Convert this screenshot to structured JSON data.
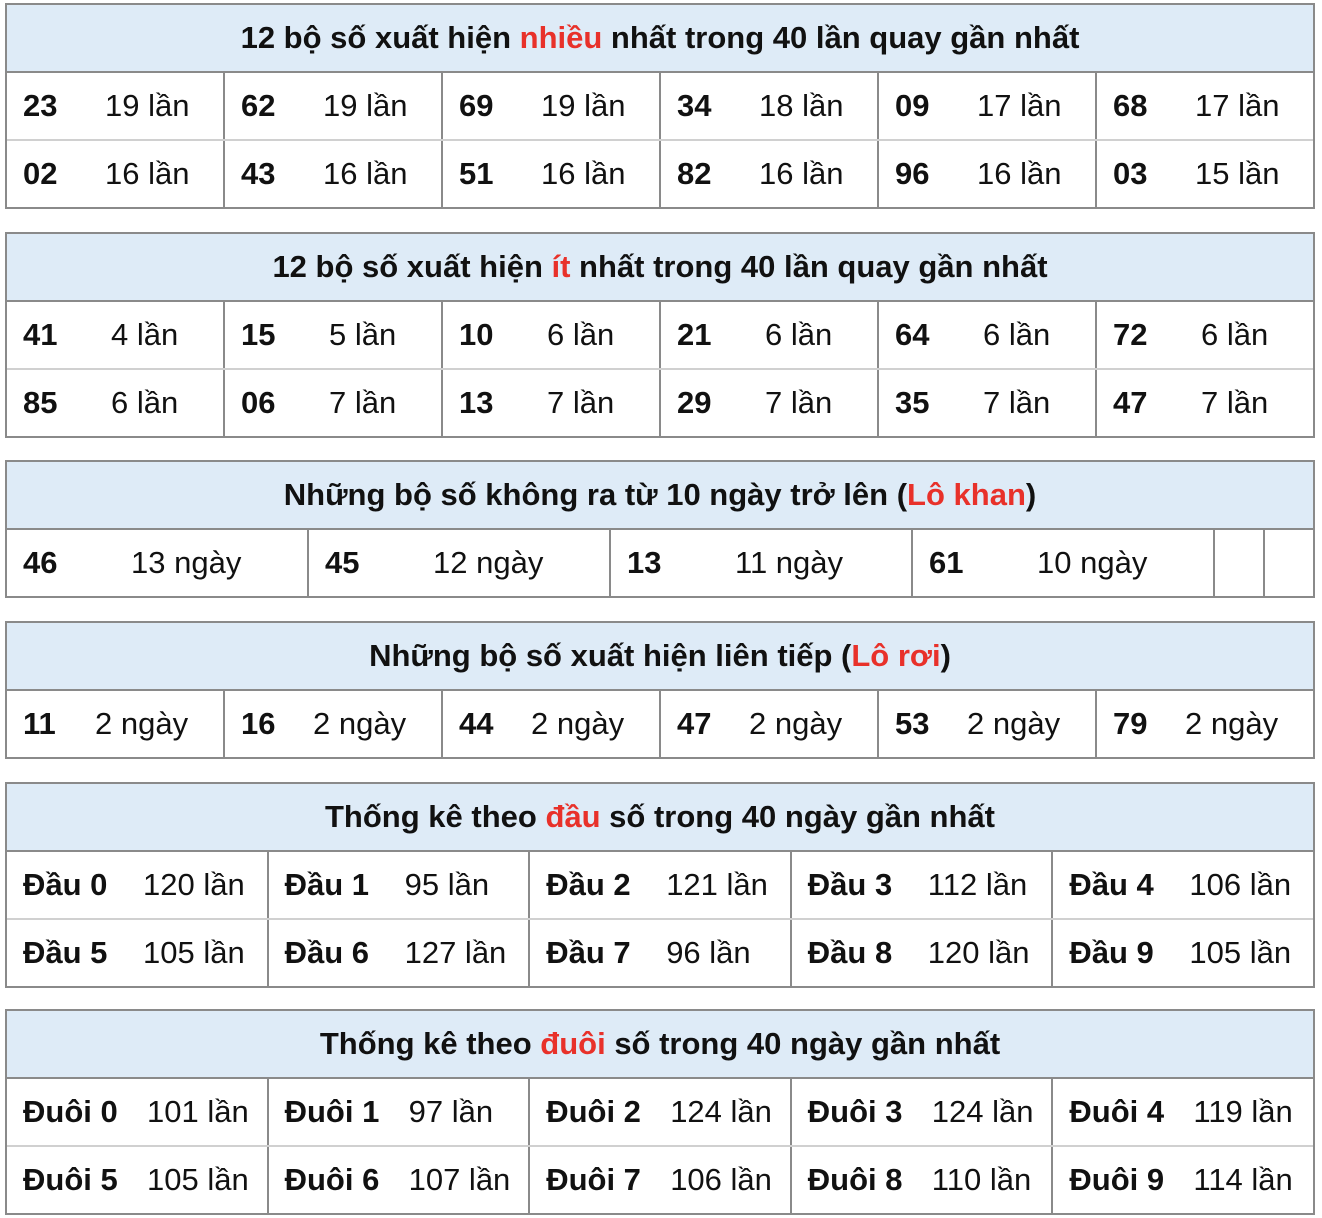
{
  "tables": [
    {
      "title": [
        "12 bộ số xuất hiện ",
        "nhiều",
        " nhất trong 40 lần quay gần nhất"
      ],
      "numw": 82,
      "rows": [
        [
          [
            "23",
            "19 lần"
          ],
          [
            "62",
            "19 lần"
          ],
          [
            "69",
            "19 lần"
          ],
          [
            "34",
            "18 lần"
          ],
          [
            "09",
            "17 lần"
          ],
          [
            "68",
            "17 lần"
          ]
        ],
        [
          [
            "02",
            "16 lần"
          ],
          [
            "43",
            "16 lần"
          ],
          [
            "51",
            "16 lần"
          ],
          [
            "82",
            "16 lần"
          ],
          [
            "96",
            "16 lần"
          ],
          [
            "03",
            "15 lần"
          ]
        ]
      ]
    },
    {
      "title": [
        "12 bộ số xuất hiện ",
        "ít",
        " nhất trong 40 lần quay gần nhất"
      ],
      "numw": 88,
      "rows": [
        [
          [
            "41",
            "4 lần"
          ],
          [
            "15",
            "5 lần"
          ],
          [
            "10",
            "6 lần"
          ],
          [
            "21",
            "6 lần"
          ],
          [
            "64",
            "6 lần"
          ],
          [
            "72",
            "6 lần"
          ]
        ],
        [
          [
            "85",
            "6 lần"
          ],
          [
            "06",
            "7 lần"
          ],
          [
            "13",
            "7 lần"
          ],
          [
            "29",
            "7 lần"
          ],
          [
            "35",
            "7 lần"
          ],
          [
            "47",
            "7 lần"
          ]
        ]
      ]
    },
    {
      "title": [
        "Những bộ số không ra từ 10 ngày trở lên (",
        "Lô khan",
        ")"
      ],
      "numw": 108,
      "empty_cells": 2,
      "rows": [
        [
          [
            "46",
            "13 ngày"
          ],
          [
            "45",
            "12 ngày"
          ],
          [
            "13",
            "11 ngày"
          ],
          [
            "61",
            "10 ngày"
          ]
        ]
      ]
    },
    {
      "title": [
        "Những bộ số xuất hiện liên tiếp (",
        "Lô rơi",
        ")"
      ],
      "numw": 72,
      "rows": [
        [
          [
            "11",
            "2 ngày"
          ],
          [
            "16",
            "2 ngày"
          ],
          [
            "44",
            "2 ngày"
          ],
          [
            "47",
            "2 ngày"
          ],
          [
            "53",
            "2 ngày"
          ],
          [
            "79",
            "2 ngày"
          ]
        ]
      ]
    },
    {
      "title": [
        "Thống kê theo ",
        "đầu",
        " số trong 40 ngày gần nhất"
      ],
      "numw": 120,
      "rows": [
        [
          [
            "Đầu 0",
            "120 lần"
          ],
          [
            "Đầu 1",
            "95 lần"
          ],
          [
            "Đầu 2",
            "121 lần"
          ],
          [
            "Đầu 3",
            "112 lần"
          ],
          [
            "Đầu 4",
            "106 lần"
          ]
        ],
        [
          [
            "Đầu 5",
            "105 lần"
          ],
          [
            "Đầu 6",
            "127 lần"
          ],
          [
            "Đầu 7",
            "96 lần"
          ],
          [
            "Đầu 8",
            "120 lần"
          ],
          [
            "Đầu 9",
            "105 lần"
          ]
        ]
      ]
    },
    {
      "title": [
        "Thống kê theo ",
        "đuôi",
        " số trong 40 ngày gần nhất"
      ],
      "numw": 124,
      "rows": [
        [
          [
            "Đuôi 0",
            "101 lần"
          ],
          [
            "Đuôi 1",
            "97 lần"
          ],
          [
            "Đuôi 2",
            "124 lần"
          ],
          [
            "Đuôi 3",
            "124 lần"
          ],
          [
            "Đuôi 4",
            "119 lần"
          ]
        ],
        [
          [
            "Đuôi 5",
            "105 lần"
          ],
          [
            "Đuôi 6",
            "107 lần"
          ],
          [
            "Đuôi 7",
            "106 lần"
          ],
          [
            "Đuôi 8",
            "110 lần"
          ],
          [
            "Đuôi 9",
            "114 lần"
          ]
        ]
      ]
    }
  ],
  "colors": {
    "accent": "#e8312a",
    "header_bg": "#deebf7",
    "border": "#8a8a8a"
  }
}
